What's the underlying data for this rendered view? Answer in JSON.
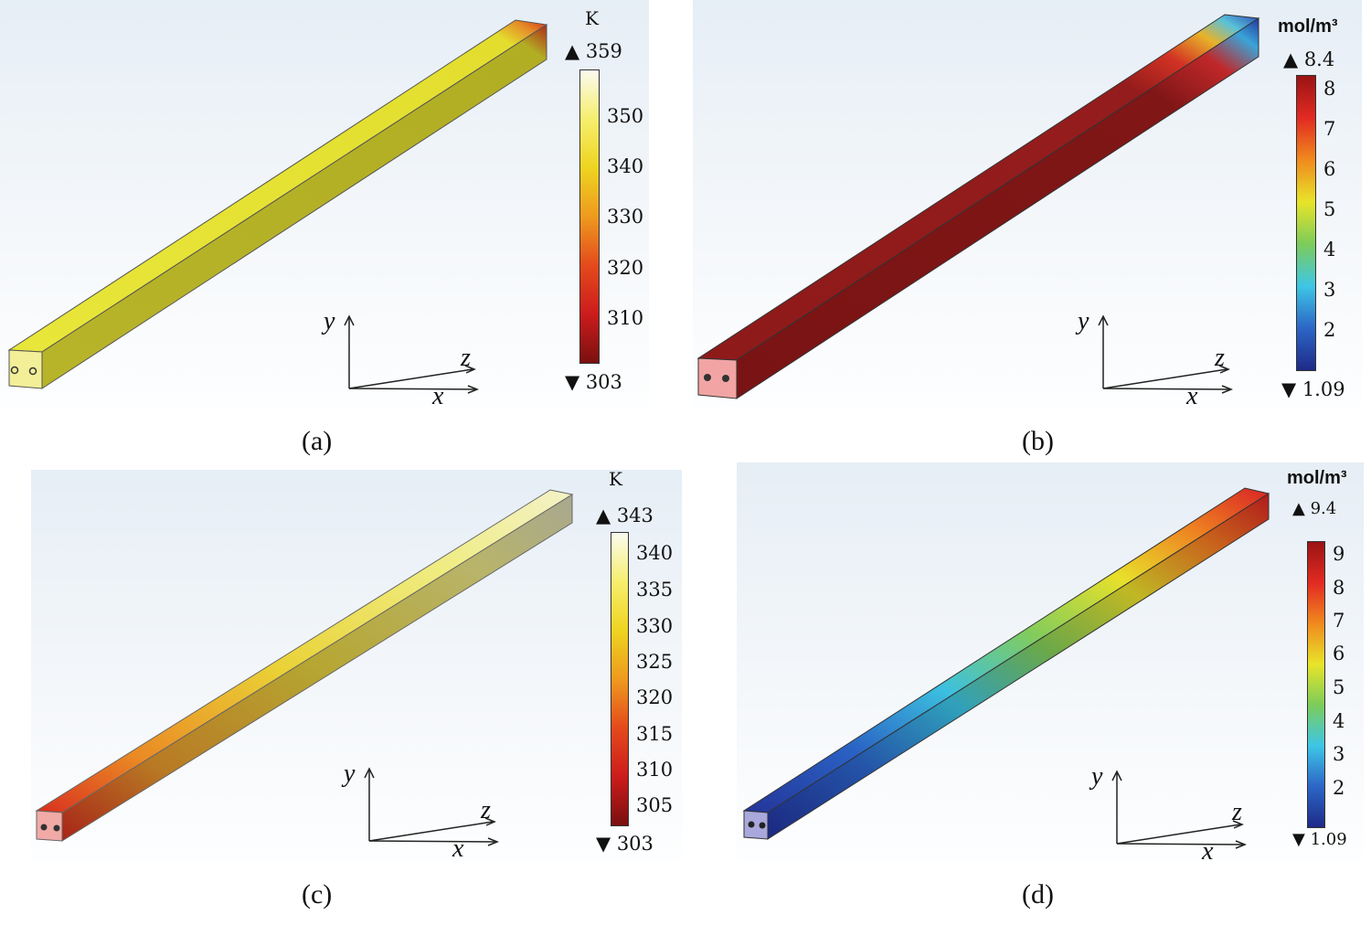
{
  "panels": [
    {
      "caption": "(a)",
      "unit": "K",
      "max_label": "▲ 359",
      "min_label": "▼ 303",
      "ticks": [
        "350",
        "340",
        "330",
        "320",
        "310"
      ],
      "colormap": "heat",
      "axes": {
        "y": "y",
        "z": "z",
        "x": "x"
      }
    },
    {
      "caption": "(b)",
      "unit": "mol/m³",
      "max_label": "▲ 8.4",
      "min_label": "▼ 1.09",
      "ticks": [
        "8",
        "7",
        "6",
        "5",
        "4",
        "3",
        "2"
      ],
      "colormap": "rainbow",
      "axes": {
        "y": "y",
        "z": "z",
        "x": "x"
      }
    },
    {
      "caption": "(c)",
      "unit": "K",
      "max_label": "▲ 343",
      "min_label": "▼ 303",
      "ticks": [
        "340",
        "335",
        "330",
        "325",
        "320",
        "315",
        "310",
        "305"
      ],
      "colormap": "heat",
      "axes": {
        "y": "y",
        "z": "z",
        "x": "x"
      }
    },
    {
      "caption": "(d)",
      "unit": "mol/m³",
      "max_label": "▲ 9.4",
      "min_label": "▼ 1.09",
      "ticks": [
        "9",
        "8",
        "7",
        "6",
        "5",
        "4",
        "3",
        "2"
      ],
      "colormap": "rainbow",
      "axes": {
        "y": "y",
        "z": "z",
        "x": "x"
      }
    }
  ],
  "colors": {
    "heat_bar": [
      "#fbfbef",
      "#f6ee6e",
      "#eed420",
      "#ee9a1e",
      "#e44a1c",
      "#cc1c1c",
      "#7a1010"
    ],
    "rainbow_bar": [
      "#9a1414",
      "#e22a22",
      "#f08a1e",
      "#e8e42a",
      "#7ccc5a",
      "#3ec6e6",
      "#2c66c6",
      "#1e2a88"
    ]
  }
}
